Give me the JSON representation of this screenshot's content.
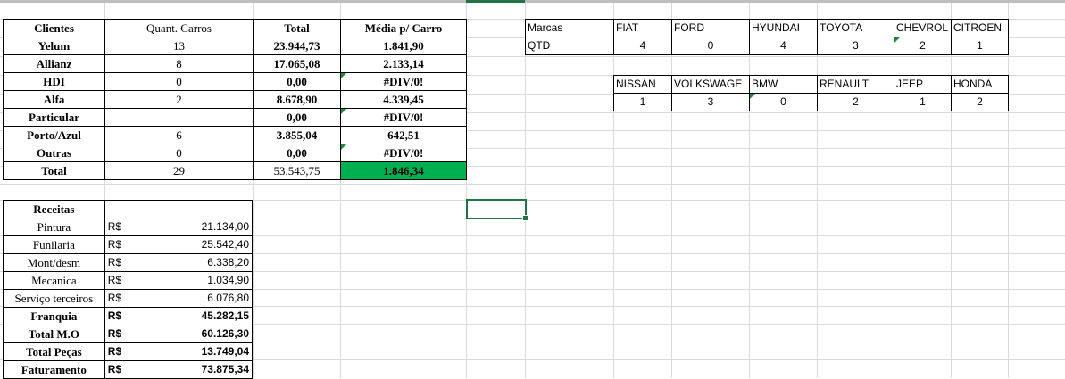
{
  "clients_table": {
    "headers": [
      "Clientes",
      "Quant. Carros",
      "Total",
      "Média p/ Carro"
    ],
    "rows": [
      [
        "Yelum",
        "13",
        "23.944,73",
        "1.841,90"
      ],
      [
        "Allianz",
        "8",
        "17.065,08",
        "2.133,14"
      ],
      [
        "HDI",
        "0",
        "0,00",
        "#DIV/0!"
      ],
      [
        "Alfa",
        "2",
        "8.678,90",
        "4.339,45"
      ],
      [
        "Particular",
        "",
        "0,00",
        "#DIV/0!"
      ],
      [
        "Porto/Azul",
        "6",
        "3.855,04",
        "642,51"
      ],
      [
        "Outras",
        "0",
        "0,00",
        "#DIV/0!"
      ]
    ],
    "total": [
      "Total",
      "29",
      "53.543,75",
      "1.846,34"
    ]
  },
  "receitas_table": {
    "title": "Receitas",
    "rows": [
      [
        "Pintura",
        "R$",
        "21.134,00"
      ],
      [
        "Funilaria",
        "R$",
        "25.542,40"
      ],
      [
        "Mont/desm",
        "R$",
        "6.338,20"
      ],
      [
        "Mecanica",
        "R$",
        "1.034,90"
      ],
      [
        "Serviço terceiros",
        "R$",
        "6.076,80"
      ]
    ],
    "summary_rows": [
      [
        "Franquia",
        "R$",
        "45.282,15"
      ],
      [
        "Total M.O",
        "R$",
        "60.126,30"
      ],
      [
        "Total Peças",
        "R$",
        "13.749,04"
      ],
      [
        "Faturamento",
        "R$",
        "73.875,34"
      ]
    ]
  },
  "brands_table_1": {
    "row_label_1": "Marcas",
    "row_label_2": "QTD",
    "brands": [
      "FIAT",
      "FORD",
      "HYUNDAI",
      "TOYOTA",
      "CHEVROL",
      "CITROEN"
    ],
    "counts": [
      "4",
      "0",
      "4",
      "3",
      "2",
      "1"
    ]
  },
  "brands_table_2": {
    "brands": [
      "NISSAN",
      "VOLKSWAGE",
      "BMW",
      "RENAULT",
      "JEEP",
      "HONDA"
    ],
    "counts": [
      "1",
      "3",
      "0",
      "2",
      "1",
      "2"
    ]
  },
  "colors": {
    "highlight": "#00b050",
    "selection": "#217346",
    "gridline": "#dadada"
  }
}
